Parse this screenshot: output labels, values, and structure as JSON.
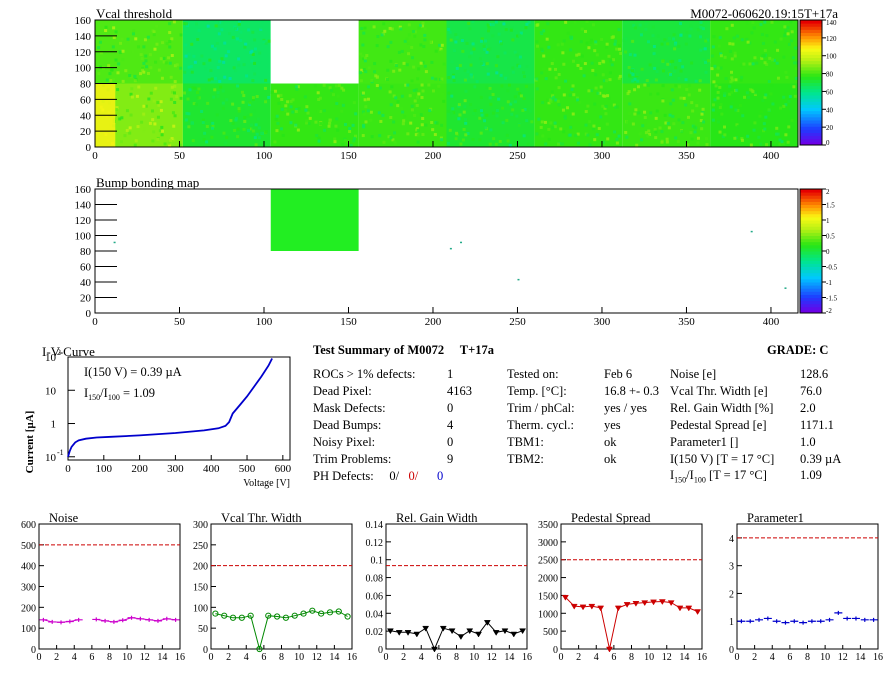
{
  "header": {
    "vcal_title": "Vcal threshold",
    "module_id": "M0072-060620.19:15T+17a",
    "bump_title": "Bump bonding map"
  },
  "colorbar_vcal": {
    "ticks": [
      "140",
      "120",
      "100",
      "80",
      "60",
      "40",
      "20",
      "0"
    ]
  },
  "colorbar_bump": {
    "ticks": [
      "2",
      "1.5",
      "1",
      "0.5",
      "0",
      "-0.5",
      "-1",
      "-1.5",
      "-2"
    ]
  },
  "map_axes": {
    "x_ticks": [
      "0",
      "50",
      "100",
      "150",
      "200",
      "250",
      "300",
      "350",
      "400"
    ],
    "y_ticks": [
      "0",
      "20",
      "40",
      "60",
      "80",
      "100",
      "120",
      "140",
      "160"
    ]
  },
  "iv": {
    "title": "I-V-Curve",
    "ylabel": "Current [µA]",
    "xlabel": "Voltage [V]",
    "note_i150": "I(150 V) = 0.39 µA",
    "note_ratio_sym": "I",
    "note_ratio_sub1": "150",
    "note_ratio_sep": "/I",
    "note_ratio_sub2": "100",
    "note_ratio_val": " =  1.09",
    "y_ticks": [
      {
        "base": "10",
        "exp": "-1"
      },
      {
        "base": "1",
        "exp": ""
      },
      {
        "base": "10",
        "exp": ""
      },
      {
        "base": "10",
        "exp": "2"
      }
    ],
    "x_ticks": [
      "0",
      "100",
      "200",
      "300",
      "400",
      "500",
      "600"
    ]
  },
  "summary": {
    "title": "Test Summary of M0072",
    "tag": "T+17a",
    "grade": "GRADE:  C",
    "col1": [
      {
        "label": "ROCs > 1% defects:",
        "value": "1"
      },
      {
        "label": "Dead Pixel:",
        "value": "4163"
      },
      {
        "label": "Mask Defects:",
        "value": "0"
      },
      {
        "label": "Dead Bumps:",
        "value": "4"
      },
      {
        "label": "Noisy Pixel:",
        "value": "0"
      },
      {
        "label": "Trim Problems:",
        "value": "9"
      }
    ],
    "ph_label": "PH Defects:",
    "ph_v1": "0/",
    "ph_v2": "0/",
    "ph_v3": "0",
    "col2": [
      {
        "label": "Tested on:",
        "value": "Feb 6"
      },
      {
        "label": "Temp. [°C]:",
        "value": "16.8 +- 0.3"
      },
      {
        "label": "Trim / phCal:",
        "value": "yes / yes"
      },
      {
        "label": "Therm. cycl.:",
        "value": "yes"
      },
      {
        "label": "TBM1:",
        "value": "ok"
      },
      {
        "label": "TBM2:",
        "value": "ok"
      }
    ],
    "col3": [
      {
        "label": "Noise [e]",
        "value": "128.6"
      },
      {
        "label": "Vcal Thr. Width [e]",
        "value": "76.0"
      },
      {
        "label": "Rel. Gain Width [%]",
        "value": "2.0"
      },
      {
        "label": "Pedestal Spread [e]",
        "value": "1171.1"
      },
      {
        "label": "Parameter1 []",
        "value": "1.0"
      },
      {
        "label": "I(150 V) [T = 17 °C]",
        "value": "0.39 µA"
      }
    ],
    "last_label_i": "I",
    "last_label_sub1": "150",
    "last_label_sep": "/I",
    "last_label_sub2": "100",
    "last_label_rest": "  [T = 17 °C]",
    "last_value": "1.09"
  },
  "chart_data": [
    {
      "type": "heatmap",
      "title": "Vcal threshold",
      "xlim": [
        0,
        416
      ],
      "ylim": [
        0,
        160
      ],
      "z_range": [
        0,
        150
      ],
      "roc_grid": {
        "cols": 8,
        "rows": 2,
        "roc_width": 52,
        "roc_height": 80
      },
      "missing_rocs": [
        {
          "col": 2,
          "row": 1
        }
      ],
      "roc_mean_level": [
        [
          95,
          78,
          84,
          85,
          78,
          84,
          85,
          82
        ],
        [
          88,
          70,
          0,
          86,
          74,
          84,
          76,
          84
        ]
      ]
    },
    {
      "type": "heatmap",
      "title": "Bump bonding map",
      "xlim": [
        0,
        416
      ],
      "ylim": [
        0,
        160
      ],
      "z_range": [
        -2,
        2
      ],
      "blocks": [
        {
          "x0": 104,
          "x1": 156,
          "y0": 80,
          "y1": 160,
          "z": 0
        }
      ],
      "points": [
        [
          11,
          92
        ],
        [
          210,
          84
        ],
        [
          216,
          92
        ],
        [
          250,
          44
        ],
        [
          388,
          106
        ],
        [
          408,
          33
        ]
      ]
    },
    {
      "type": "line",
      "title": "I-V-Curve",
      "xlabel": "Voltage [V]",
      "ylabel": "Current [µA]",
      "yscale": "log",
      "xlim": [
        0,
        620
      ],
      "ylim": [
        0.08,
        100
      ],
      "x": [
        0,
        5,
        10,
        20,
        30,
        50,
        80,
        120,
        200,
        300,
        380,
        420,
        440,
        450,
        460,
        480,
        500,
        520,
        540,
        560,
        570
      ],
      "y": [
        0.1,
        0.15,
        0.2,
        0.27,
        0.31,
        0.35,
        0.38,
        0.4,
        0.44,
        0.52,
        0.62,
        0.72,
        0.85,
        1.1,
        2.0,
        3.6,
        6.5,
        13,
        26,
        55,
        90
      ]
    },
    {
      "type": "line",
      "title": "Noise",
      "xlim": [
        0,
        16
      ],
      "ylim": [
        0,
        600
      ],
      "threshold": 500,
      "series": [
        {
          "values": [
            140,
            130,
            128,
            132,
            140,
            null,
            142,
            135,
            130,
            138,
            150,
            145,
            140,
            135,
            145,
            140
          ]
        }
      ]
    },
    {
      "type": "line",
      "title": "Vcal Thr. Width",
      "xlim": [
        0,
        16
      ],
      "ylim": [
        0,
        300
      ],
      "threshold": 200,
      "series": [
        {
          "values": [
            85,
            80,
            75,
            75,
            80,
            0,
            80,
            78,
            75,
            80,
            85,
            92,
            85,
            88,
            90,
            78
          ]
        }
      ]
    },
    {
      "type": "line",
      "title": "Rel. Gain Width",
      "xlim": [
        0,
        16
      ],
      "ylim": [
        0,
        0.15
      ],
      "threshold": 0.1,
      "series": [
        {
          "values": [
            0.022,
            0.02,
            0.02,
            0.018,
            0.025,
            0,
            0.025,
            0.022,
            0.015,
            0.022,
            0.018,
            0.032,
            0.02,
            0.022,
            0.018,
            0.022
          ]
        }
      ]
    },
    {
      "type": "line",
      "title": "Pedestal Spread",
      "xlim": [
        0,
        16
      ],
      "ylim": [
        0,
        3500
      ],
      "threshold": 2500,
      "series": [
        {
          "values": [
            1450,
            1200,
            1180,
            1200,
            1150,
            0,
            1150,
            1250,
            1280,
            1300,
            1320,
            1330,
            1300,
            1150,
            1150,
            1050
          ]
        }
      ]
    },
    {
      "type": "scatter",
      "title": "Parameter1",
      "xlim": [
        0,
        16
      ],
      "ylim": [
        0,
        4.5
      ],
      "threshold": 4,
      "series": [
        {
          "values": [
            1.0,
            1.0,
            1.05,
            1.1,
            1.0,
            0.95,
            1.0,
            0.95,
            1.0,
            1.0,
            1.05,
            1.3,
            1.1,
            1.1,
            1.05,
            1.05
          ]
        }
      ]
    }
  ],
  "small_titles": [
    "Noise",
    "Vcal Thr. Width",
    "Rel. Gain Width",
    "Pedestal Spread",
    "Parameter1"
  ],
  "small_x_ticks": [
    "0",
    "2",
    "4",
    "6",
    "8",
    "10",
    "12",
    "14",
    "16"
  ],
  "small_y_ticks": [
    [
      "0",
      "100",
      "200",
      "300",
      "400",
      "500",
      "600"
    ],
    [
      "0",
      "50",
      "100",
      "150",
      "200",
      "250",
      "300"
    ],
    [
      "0",
      "0.02",
      "0.04",
      "0.06",
      "0.08",
      "0.1",
      "0.12",
      "0.14"
    ],
    [
      "0",
      "500",
      "1000",
      "1500",
      "2000",
      "2500",
      "3000",
      "3500"
    ],
    [
      "0",
      "1",
      "2",
      "3",
      "4"
    ]
  ],
  "colors": {
    "noise": "#cc00cc",
    "vcal": "#008800",
    "gain": "#000000",
    "ped": "#cc0000",
    "param": "#0000cc",
    "threshold": "#cc0000",
    "iv": "#0000cc"
  }
}
